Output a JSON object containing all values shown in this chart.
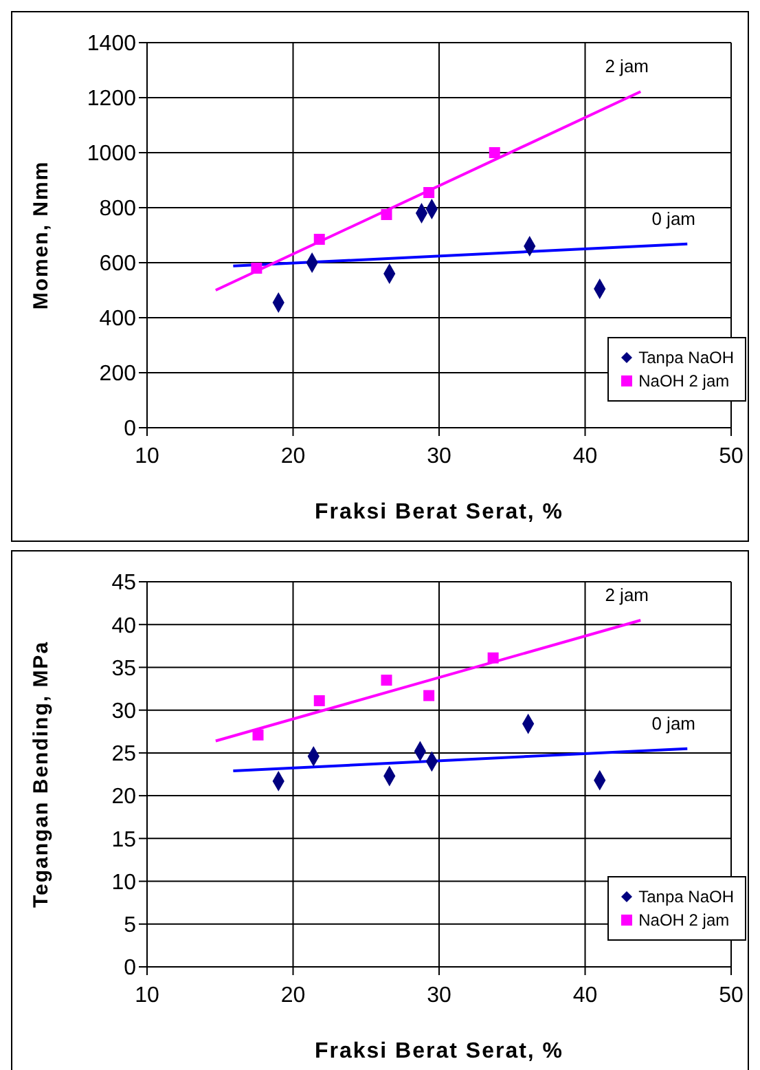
{
  "chart_data": [
    {
      "type": "scatter",
      "xlabel": "Fraksi Berat Serat, %",
      "ylabel": "Momen, Nmm",
      "xlim": [
        10,
        50
      ],
      "xticks": [
        10,
        20,
        30,
        40,
        50
      ],
      "ylim": [
        0,
        1400
      ],
      "yticks": [
        0,
        200,
        400,
        600,
        800,
        1000,
        1200,
        1400
      ],
      "grid": true,
      "legend": "bottom right",
      "series": [
        {
          "name": "Tanpa NaOH",
          "marker": "diamond",
          "color": "#000080",
          "x": [
            19,
            21.3,
            26.6,
            28.8,
            29.5,
            36.2,
            41
          ],
          "values": [
            455,
            600,
            560,
            780,
            795,
            660,
            505
          ]
        },
        {
          "name": "NaOH 2 jam",
          "marker": "square",
          "color": "#ff00ff",
          "x": [
            17.5,
            21.8,
            26.4,
            29.3,
            33.8
          ],
          "values": [
            580,
            685,
            775,
            855,
            1000
          ]
        },
        {
          "name": "0 jam",
          "type": "line",
          "marker": "none",
          "color": "#0000ff",
          "x": [
            15.9,
            47
          ],
          "values": [
            588,
            668
          ]
        },
        {
          "name": "2 jam",
          "type": "line",
          "marker": "none",
          "color": "#ff00ff",
          "x": [
            14.7,
            43.8
          ],
          "values": [
            500,
            1222
          ]
        }
      ]
    },
    {
      "type": "scatter",
      "xlabel": "Fraksi Berat Serat, %",
      "ylabel": "Tegangan Bending, MPa",
      "xlim": [
        10,
        50
      ],
      "xticks": [
        10,
        20,
        30,
        40,
        50
      ],
      "ylim": [
        0,
        45
      ],
      "yticks": [
        0,
        5,
        10,
        15,
        20,
        25,
        30,
        35,
        40,
        45
      ],
      "grid": true,
      "legend": "bottom right",
      "series": [
        {
          "name": "Tanpa NaOH",
          "marker": "diamond",
          "color": "#000080",
          "x": [
            19,
            21.4,
            26.6,
            28.7,
            29.5,
            36.1,
            41
          ],
          "values": [
            21.7,
            24.6,
            22.3,
            25.2,
            24,
            28.4,
            21.8
          ]
        },
        {
          "name": "NaOH 2 jam",
          "marker": "square",
          "color": "#ff00ff",
          "x": [
            17.6,
            21.8,
            26.4,
            29.3,
            33.7
          ],
          "values": [
            27.1,
            31.1,
            33.5,
            31.7,
            36.1
          ]
        },
        {
          "name": "0 jam",
          "type": "line",
          "marker": "none",
          "color": "#0000ff",
          "x": [
            15.9,
            47
          ],
          "values": [
            22.9,
            25.5
          ]
        },
        {
          "name": "2 jam",
          "type": "line",
          "marker": "none",
          "color": "#ff00ff",
          "x": [
            14.7,
            43.8
          ],
          "values": [
            26.4,
            40.5
          ]
        }
      ]
    }
  ]
}
